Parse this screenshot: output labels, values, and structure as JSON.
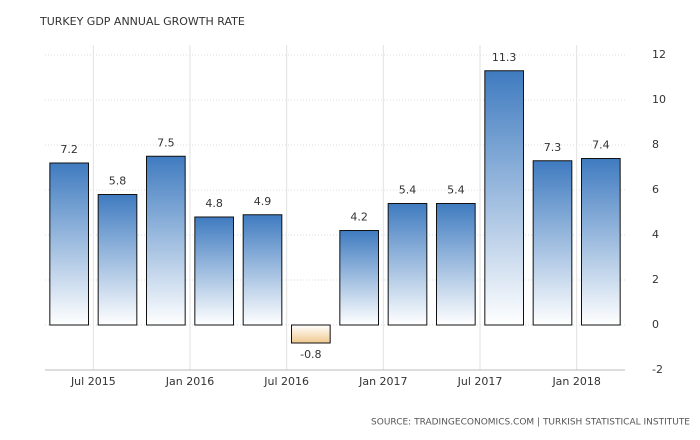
{
  "chart_data": {
    "type": "bar",
    "title": "TURKEY GDP ANNUAL GROWTH RATE",
    "source": "SOURCE: TRADINGECONOMICS.COM | TURKISH STATISTICAL INSTITUTE",
    "values": [
      7.2,
      5.8,
      7.5,
      4.8,
      4.9,
      -0.8,
      4.2,
      5.4,
      5.4,
      11.3,
      7.3,
      7.4
    ],
    "xticks": [
      "Jul 2015",
      "Jan 2016",
      "Jul 2016",
      "Jan 2017",
      "Jul 2017",
      "Jan 2018"
    ],
    "color": "#3f7bc0",
    "negative_color": "#f0c88e",
    "ylim": [
      -2,
      12
    ],
    "yticks": [
      -2,
      0,
      2,
      4,
      6,
      8,
      10,
      12
    ],
    "grid": true
  }
}
